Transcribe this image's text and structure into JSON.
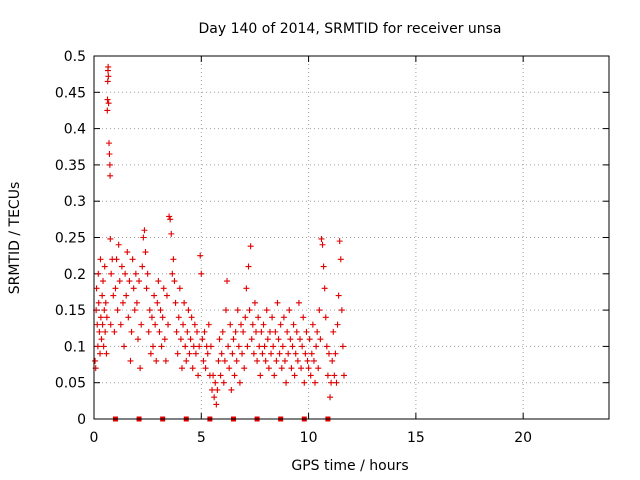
{
  "chart_data": {
    "type": "scatter",
    "title": "Day 140 of 2014, SRMTID for receiver unsa",
    "xlabel": "GPS time / hours",
    "ylabel": "SRMTID / TECUs",
    "xlim": [
      0,
      24
    ],
    "ylim": [
      0,
      0.5
    ],
    "xticks": [
      0,
      5,
      10,
      15,
      20
    ],
    "xtick_labels": [
      "0",
      "5",
      "10",
      "15",
      "20"
    ],
    "yticks": [
      0,
      0.05,
      0.1,
      0.15,
      0.2,
      0.25,
      0.3,
      0.35,
      0.4,
      0.45,
      0.5
    ],
    "ytick_labels": [
      "0",
      "0.05",
      "0.1",
      "0.15",
      "0.2",
      "0.25",
      "0.3",
      "0.35",
      "0.4",
      "0.45",
      "0.5"
    ],
    "grid": true,
    "marker": "+",
    "color": "#e00000",
    "series": [
      {
        "name": "SRMTID",
        "points": [
          [
            0.05,
            0.08
          ],
          [
            0.08,
            0.07
          ],
          [
            0.1,
            0.15
          ],
          [
            0.12,
            0.18
          ],
          [
            0.15,
            0.13
          ],
          [
            0.18,
            0.1
          ],
          [
            0.2,
            0.2
          ],
          [
            0.22,
            0.16
          ],
          [
            0.25,
            0.12
          ],
          [
            0.28,
            0.09
          ],
          [
            0.3,
            0.22
          ],
          [
            0.32,
            0.14
          ],
          [
            0.35,
            0.11
          ],
          [
            0.38,
            0.17
          ],
          [
            0.4,
            0.13
          ],
          [
            0.42,
            0.19
          ],
          [
            0.45,
            0.1
          ],
          [
            0.48,
            0.15
          ],
          [
            0.5,
            0.21
          ],
          [
            0.52,
            0.12
          ],
          [
            0.55,
            0.16
          ],
          [
            0.58,
            0.09
          ],
          [
            0.6,
            0.14
          ],
          [
            0.62,
            0.425
          ],
          [
            0.63,
            0.44
          ],
          [
            0.64,
            0.465
          ],
          [
            0.65,
            0.48
          ],
          [
            0.66,
            0.485
          ],
          [
            0.67,
            0.472
          ],
          [
            0.68,
            0.435
          ],
          [
            0.7,
            0.38
          ],
          [
            0.72,
            0.365
          ],
          [
            0.74,
            0.35
          ],
          [
            0.75,
            0.335
          ],
          [
            0.76,
            0.248
          ],
          [
            0.78,
            0.13
          ],
          [
            0.8,
            0.2
          ],
          [
            0.85,
            0.22
          ],
          [
            0.9,
            0.17
          ],
          [
            0.95,
            0.12
          ],
          [
            1.0,
            0.18
          ],
          [
            1.05,
            0.22
          ],
          [
            1.1,
            0.15
          ],
          [
            1.15,
            0.24
          ],
          [
            1.2,
            0.19
          ],
          [
            1.25,
            0.13
          ],
          [
            1.3,
            0.21
          ],
          [
            1.35,
            0.16
          ],
          [
            1.4,
            0.1
          ],
          [
            1.45,
            0.2
          ],
          [
            1.5,
            0.17
          ],
          [
            1.55,
            0.23
          ],
          [
            1.6,
            0.14
          ],
          [
            1.65,
            0.19
          ],
          [
            1.7,
            0.08
          ],
          [
            1.75,
            0.12
          ],
          [
            1.8,
            0.22
          ],
          [
            1.85,
            0.18
          ],
          [
            1.9,
            0.15
          ],
          [
            1.95,
            0.2
          ],
          [
            2.0,
            0.16
          ],
          [
            2.05,
            0.11
          ],
          [
            2.1,
            0.19
          ],
          [
            2.15,
            0.07
          ],
          [
            2.2,
            0.13
          ],
          [
            2.25,
            0.21
          ],
          [
            2.3,
            0.25
          ],
          [
            2.35,
            0.26
          ],
          [
            2.4,
            0.23
          ],
          [
            2.45,
            0.18
          ],
          [
            2.5,
            0.2
          ],
          [
            2.55,
            0.12
          ],
          [
            2.6,
            0.15
          ],
          [
            2.65,
            0.09
          ],
          [
            2.7,
            0.14
          ],
          [
            2.75,
            0.1
          ],
          [
            2.8,
            0.17
          ],
          [
            2.85,
            0.13
          ],
          [
            2.9,
            0.08
          ],
          [
            2.95,
            0.16
          ],
          [
            3.0,
            0.19
          ],
          [
            3.05,
            0.12
          ],
          [
            3.1,
            0.15
          ],
          [
            3.15,
            0.1
          ],
          [
            3.2,
            0.14
          ],
          [
            3.25,
            0.18
          ],
          [
            3.3,
            0.11
          ],
          [
            3.35,
            0.08
          ],
          [
            3.4,
            0.17
          ],
          [
            3.45,
            0.13
          ],
          [
            3.5,
            0.279
          ],
          [
            3.55,
            0.275
          ],
          [
            3.6,
            0.255
          ],
          [
            3.65,
            0.2
          ],
          [
            3.7,
            0.22
          ],
          [
            3.75,
            0.19
          ],
          [
            3.8,
            0.16
          ],
          [
            3.85,
            0.12
          ],
          [
            3.9,
            0.09
          ],
          [
            3.95,
            0.14
          ],
          [
            4.0,
            0.18
          ],
          [
            4.05,
            0.11
          ],
          [
            4.1,
            0.07
          ],
          [
            4.15,
            0.13
          ],
          [
            4.2,
            0.16
          ],
          [
            4.25,
            0.1
          ],
          [
            4.3,
            0.08
          ],
          [
            4.35,
            0.12
          ],
          [
            4.4,
            0.15
          ],
          [
            4.45,
            0.09
          ],
          [
            4.5,
            0.11
          ],
          [
            4.55,
            0.14
          ],
          [
            4.6,
            0.07
          ],
          [
            4.65,
            0.1
          ],
          [
            4.7,
            0.13
          ],
          [
            4.75,
            0.09
          ],
          [
            4.8,
            0.12
          ],
          [
            4.85,
            0.06
          ],
          [
            4.9,
            0.1
          ],
          [
            4.95,
            0.225
          ],
          [
            5.0,
            0.2
          ],
          [
            5.05,
            0.11
          ],
          [
            5.1,
            0.08
          ],
          [
            5.15,
            0.12
          ],
          [
            5.2,
            0.07
          ],
          [
            5.25,
            0.1
          ],
          [
            5.3,
            0.09
          ],
          [
            5.35,
            0.13
          ],
          [
            5.4,
            0.06
          ],
          [
            5.45,
            0.1
          ],
          [
            5.5,
            0.04
          ],
          [
            5.55,
            0.06
          ],
          [
            5.6,
            0.03
          ],
          [
            5.65,
            0.05
          ],
          [
            5.7,
            0.02
          ],
          [
            5.75,
            0.04
          ],
          [
            5.8,
            0.08
          ],
          [
            5.85,
            0.11
          ],
          [
            5.9,
            0.06
          ],
          [
            5.95,
            0.09
          ],
          [
            6.0,
            0.12
          ],
          [
            6.05,
            0.05
          ],
          [
            6.1,
            0.08
          ],
          [
            6.15,
            0.15
          ],
          [
            6.2,
            0.19
          ],
          [
            6.25,
            0.1
          ],
          [
            6.3,
            0.07
          ],
          [
            6.35,
            0.13
          ],
          [
            6.4,
            0.04
          ],
          [
            6.45,
            0.09
          ],
          [
            6.5,
            0.11
          ],
          [
            6.55,
            0.06
          ],
          [
            6.6,
            0.12
          ],
          [
            6.65,
            0.08
          ],
          [
            6.7,
            0.15
          ],
          [
            6.75,
            0.1
          ],
          [
            6.8,
            0.05
          ],
          [
            6.85,
            0.13
          ],
          [
            6.9,
            0.09
          ],
          [
            6.95,
            0.12
          ],
          [
            7.0,
            0.07
          ],
          [
            7.05,
            0.14
          ],
          [
            7.1,
            0.18
          ],
          [
            7.15,
            0.1
          ],
          [
            7.2,
            0.21
          ],
          [
            7.25,
            0.15
          ],
          [
            7.3,
            0.238
          ],
          [
            7.35,
            0.11
          ],
          [
            7.4,
            0.13
          ],
          [
            7.45,
            0.09
          ],
          [
            7.5,
            0.16
          ],
          [
            7.55,
            0.12
          ],
          [
            7.6,
            0.08
          ],
          [
            7.65,
            0.14
          ],
          [
            7.7,
            0.1
          ],
          [
            7.75,
            0.06
          ],
          [
            7.8,
            0.12
          ],
          [
            7.85,
            0.09
          ],
          [
            7.9,
            0.13
          ],
          [
            7.95,
            0.1
          ],
          [
            8.0,
            0.08
          ],
          [
            8.05,
            0.15
          ],
          [
            8.1,
            0.11
          ],
          [
            8.15,
            0.07
          ],
          [
            8.2,
            0.12
          ],
          [
            8.25,
            0.09
          ],
          [
            8.3,
            0.14
          ],
          [
            8.35,
            0.1
          ],
          [
            8.4,
            0.06
          ],
          [
            8.45,
            0.12
          ],
          [
            8.5,
            0.08
          ],
          [
            8.55,
            0.16
          ],
          [
            8.6,
            0.11
          ],
          [
            8.65,
            0.09
          ],
          [
            8.7,
            0.13
          ],
          [
            8.75,
            0.07
          ],
          [
            8.8,
            0.1
          ],
          [
            8.85,
            0.14
          ],
          [
            8.9,
            0.08
          ],
          [
            8.95,
            0.05
          ],
          [
            9.0,
            0.12
          ],
          [
            9.05,
            0.09
          ],
          [
            9.1,
            0.15
          ],
          [
            9.15,
            0.11
          ],
          [
            9.2,
            0.07
          ],
          [
            9.25,
            0.1
          ],
          [
            9.3,
            0.13
          ],
          [
            9.35,
            0.06
          ],
          [
            9.4,
            0.09
          ],
          [
            9.45,
            0.12
          ],
          [
            9.5,
            0.08
          ],
          [
            9.55,
            0.16
          ],
          [
            9.6,
            0.11
          ],
          [
            9.65,
            0.07
          ],
          [
            9.7,
            0.1
          ],
          [
            9.75,
            0.14
          ],
          [
            9.8,
            0.05
          ],
          [
            9.85,
            0.09
          ],
          [
            9.9,
            0.12
          ],
          [
            9.95,
            0.08
          ],
          [
            10.0,
            0.07
          ],
          [
            10.05,
            0.11
          ],
          [
            10.1,
            0.06
          ],
          [
            10.15,
            0.09
          ],
          [
            10.2,
            0.13
          ],
          [
            10.25,
            0.08
          ],
          [
            10.3,
            0.05
          ],
          [
            10.35,
            0.1
          ],
          [
            10.4,
            0.12
          ],
          [
            10.45,
            0.07
          ],
          [
            10.5,
            0.15
          ],
          [
            10.55,
            0.11
          ],
          [
            10.6,
            0.248
          ],
          [
            10.65,
            0.24
          ],
          [
            10.7,
            0.21
          ],
          [
            10.75,
            0.18
          ],
          [
            10.8,
            0.14
          ],
          [
            10.85,
            0.1
          ],
          [
            10.9,
            0.06
          ],
          [
            10.95,
            0.09
          ],
          [
            11.0,
            0.03
          ],
          [
            11.05,
            0.05
          ],
          [
            11.1,
            0.08
          ],
          [
            11.15,
            0.12
          ],
          [
            11.2,
            0.06
          ],
          [
            11.25,
            0.09
          ],
          [
            11.3,
            0.05
          ],
          [
            11.35,
            0.13
          ],
          [
            11.4,
            0.17
          ],
          [
            11.45,
            0.245
          ],
          [
            11.5,
            0.22
          ],
          [
            11.55,
            0.15
          ],
          [
            11.6,
            0.1
          ],
          [
            11.65,
            0.06
          ]
        ]
      }
    ],
    "gap_markers_x": [
      1.0,
      2.1,
      3.2,
      4.3,
      5.4,
      6.5,
      7.6,
      8.7,
      9.8,
      10.9
    ]
  }
}
